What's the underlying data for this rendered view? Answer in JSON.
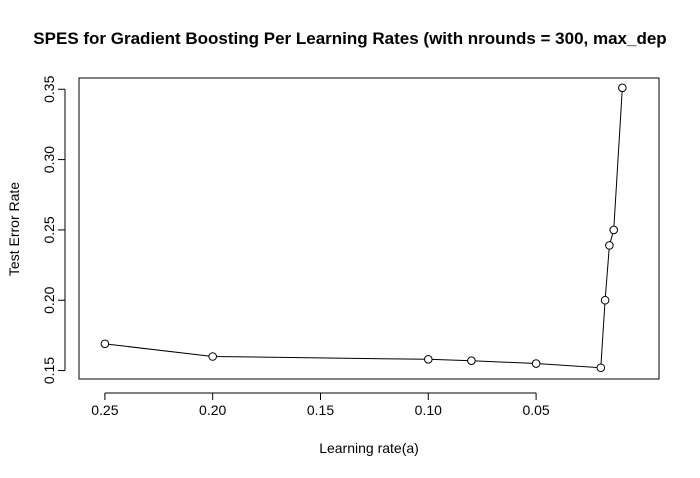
{
  "chart_data": {
    "type": "line",
    "title": "SPES for Gradient Boosting Per Learning Rates (with nrounds = 300, max_dep",
    "xlabel": "Learning rate(a)",
    "ylabel": "Test Error Rate",
    "x_reversed": true,
    "xlim": [
      0.262,
      -0.007
    ],
    "ylim": [
      0.144,
      0.358
    ],
    "xticks": [
      0.25,
      0.2,
      0.15,
      0.1,
      0.05
    ],
    "xtick_labels": [
      "0.25",
      "0.20",
      "0.15",
      "0.10",
      "0.05"
    ],
    "yticks": [
      0.15,
      0.2,
      0.25,
      0.3,
      0.35
    ],
    "ytick_labels": [
      "0.15",
      "0.20",
      "0.25",
      "0.30",
      "0.35"
    ],
    "grid": false,
    "marker": "open-circle",
    "color": "#000000",
    "x": [
      0.25,
      0.2,
      0.1,
      0.08,
      0.05,
      0.02,
      0.018,
      0.016,
      0.014,
      0.01
    ],
    "y": [
      0.169,
      0.16,
      0.158,
      0.157,
      0.155,
      0.152,
      0.2,
      0.239,
      0.25,
      0.351
    ]
  }
}
